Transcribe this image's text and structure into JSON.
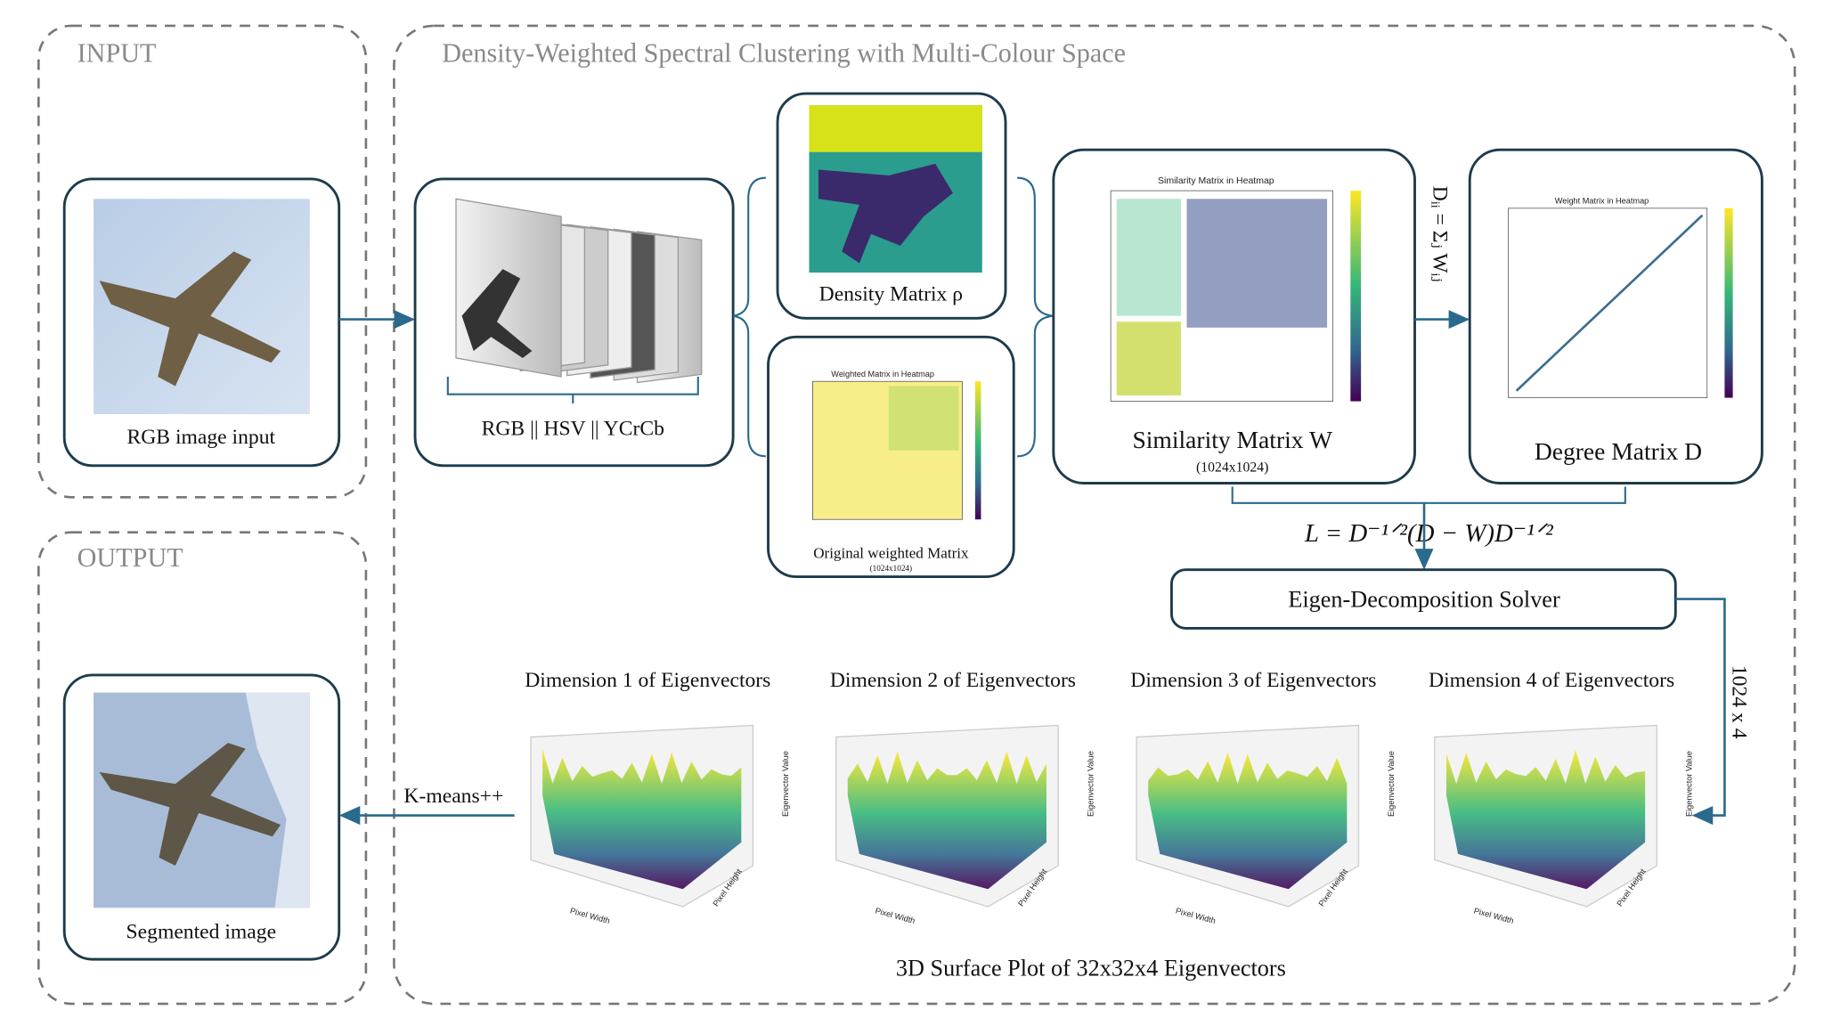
{
  "input": {
    "label": "INPUT",
    "caption": "RGB image input"
  },
  "output": {
    "label": "OUTPUT",
    "caption": "Segmented image"
  },
  "pipeline": {
    "title": "Density-Weighted Spectral Clustering with Multi-Colour Space",
    "colour_spaces": "RGB || HSV || YCrCb",
    "density": "Density Matrix ρ",
    "original_weighted": {
      "title": "Weighted Matrix in Heatmap",
      "caption": "Original weighted Matrix",
      "size": "(1024x1024)"
    },
    "similarity": {
      "title": "Similarity Matrix in Heatmap",
      "caption": "Similarity Matrix W",
      "size": "(1024x1024)"
    },
    "degree_formula": "Dᵢᵢ = Σⱼ Wᵢⱼ",
    "degree": {
      "title": "Weight Matrix in Heatmap",
      "caption": "Degree Matrix D"
    },
    "laplacian": "L = D⁻¹ᐟ²(D − W)D⁻¹ᐟ²",
    "solver": "Eigen-Decomposition Solver",
    "solver_output": "1024 x 4",
    "eigen_plots": [
      {
        "title": "Dimension 1 of Eigenvectors",
        "x_label": "Pixel Width",
        "y_label": "Pixel Height",
        "z_label": "Eigenvector Value"
      },
      {
        "title": "Dimension 2 of Eigenvectors",
        "x_label": "Pixel Width",
        "y_label": "Pixel Height",
        "z_label": "Eigenvector Value"
      },
      {
        "title": "Dimension 3 of Eigenvectors",
        "x_label": "Pixel Width",
        "y_label": "Pixel Height",
        "z_label": "Eigenvector Value"
      },
      {
        "title": "Dimension 4 of Eigenvectors",
        "x_label": "Pixel Width",
        "y_label": "Pixel Height",
        "z_label": "Eigenvector Value"
      }
    ],
    "plots_caption": "3D Surface Plot of 32x32x4 Eigenvectors",
    "clustering": "K-means++"
  }
}
